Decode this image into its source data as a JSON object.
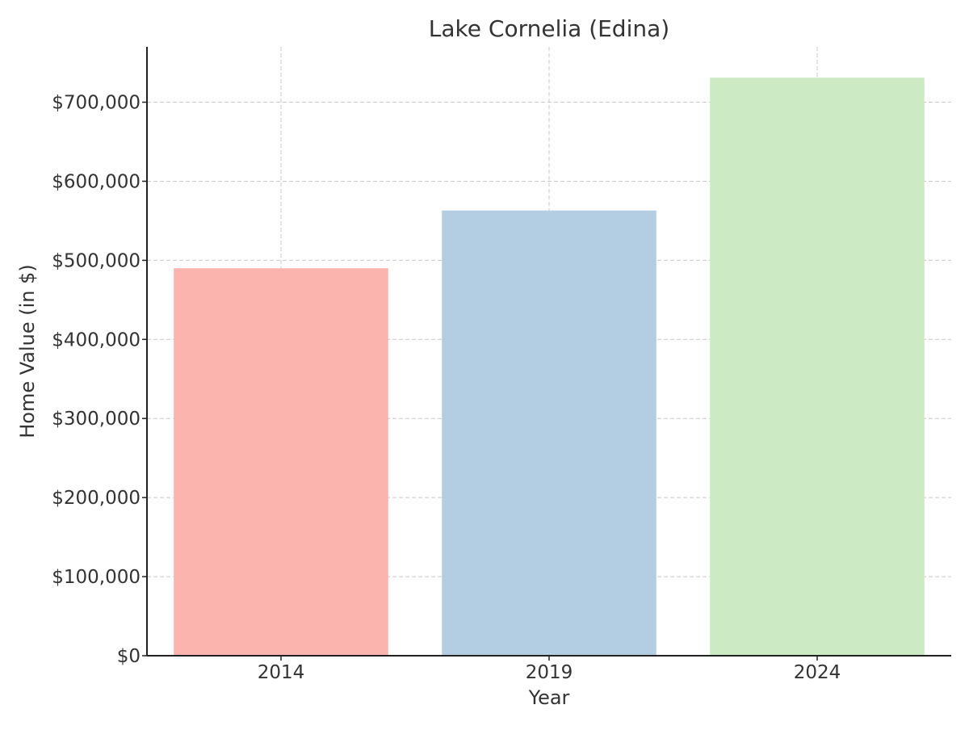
{
  "chart_data": {
    "type": "bar",
    "title": "Lake Cornelia (Edina)",
    "xlabel": "Year",
    "ylabel": "Home Value (in $)",
    "categories": [
      "2014",
      "2019",
      "2024"
    ],
    "values": [
      490000,
      563000,
      731000
    ],
    "colors": [
      "#fbb4ae",
      "#b3cde3",
      "#ccebc5"
    ],
    "ylim": [
      0,
      770000
    ],
    "yticks": [
      0,
      100000,
      200000,
      300000,
      400000,
      500000,
      600000,
      700000
    ],
    "ytick_labels": [
      "$0",
      "$100,000",
      "$200,000",
      "$300,000",
      "$400,000",
      "$500,000",
      "$600,000",
      "$700,000"
    ],
    "grid": true,
    "legend": false
  }
}
